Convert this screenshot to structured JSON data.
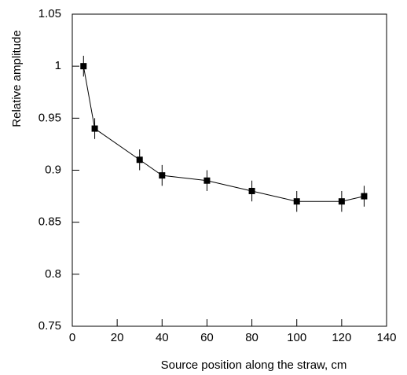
{
  "chart_data": {
    "type": "line",
    "x_label": "Source position along the straw, cm",
    "y_label": "Relative amplitude",
    "x": [
      5,
      10,
      30,
      40,
      60,
      80,
      100,
      120,
      130
    ],
    "values": [
      1.0,
      0.94,
      0.91,
      0.895,
      0.89,
      0.88,
      0.87,
      0.87,
      0.875
    ],
    "errors": [
      0.01,
      0.01,
      0.01,
      0.01,
      0.01,
      0.01,
      0.01,
      0.01,
      0.01
    ],
    "color": "#000000",
    "xlim": [
      0,
      140
    ],
    "xticks": [
      0,
      20,
      40,
      60,
      80,
      100,
      120,
      140
    ],
    "ylim": [
      0.75,
      1.05
    ],
    "yticks": [
      0.75,
      0.8,
      0.85,
      0.9,
      0.95,
      1,
      1.05
    ]
  }
}
